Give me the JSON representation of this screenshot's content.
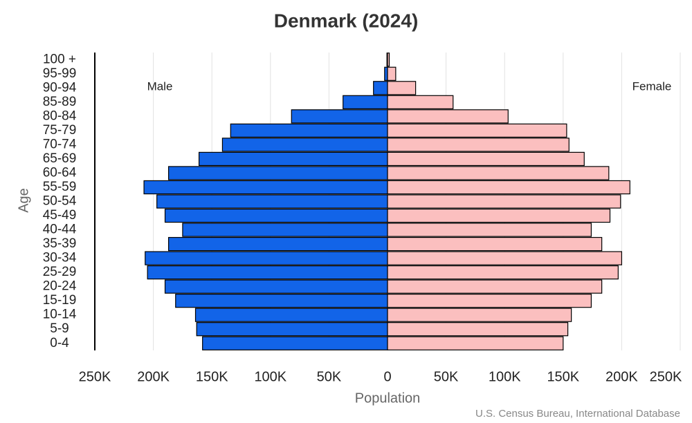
{
  "chart_data": {
    "type": "pyramid",
    "title": "Denmark (2024)",
    "x_label": "Population",
    "y_label": "Age",
    "source": "U.S. Census Bureau, International Database",
    "categories": [
      "0-4",
      "5-9",
      "10-14",
      "15-19",
      "20-24",
      "25-29",
      "30-34",
      "35-39",
      "40-44",
      "45-49",
      "50-54",
      "55-59",
      "60-64",
      "65-69",
      "70-74",
      "75-79",
      "80-84",
      "85-89",
      "90-94",
      "95-99",
      "100 +"
    ],
    "series": [
      {
        "name": "Male",
        "color": "#1264e8",
        "side": "left",
        "values": [
          158000,
          163000,
          164000,
          181000,
          190000,
          205000,
          207000,
          187000,
          175000,
          190000,
          197000,
          208000,
          187000,
          161000,
          141000,
          134000,
          82000,
          38000,
          12000,
          2500,
          500
        ]
      },
      {
        "name": "Female",
        "color": "#fbbfbf",
        "side": "right",
        "values": [
          150000,
          154000,
          157000,
          174000,
          183000,
          197000,
          200000,
          183000,
          174000,
          190000,
          199000,
          207000,
          189000,
          168000,
          155000,
          153000,
          103000,
          56000,
          24000,
          7000,
          1500
        ]
      }
    ],
    "xlim": [
      -250000,
      250000
    ],
    "xticks": [
      {
        "value": -250000,
        "label": "250K"
      },
      {
        "value": -200000,
        "label": "200K"
      },
      {
        "value": -150000,
        "label": "150K"
      },
      {
        "value": -100000,
        "label": "100K"
      },
      {
        "value": -50000,
        "label": "50K"
      },
      0,
      {
        "value": 50000,
        "label": "50K"
      },
      {
        "value": 100000,
        "label": "100K"
      },
      {
        "value": 150000,
        "label": "150K"
      },
      {
        "value": 200000,
        "label": "200K"
      },
      {
        "value": 250000,
        "label": "250K"
      }
    ],
    "grid": true
  }
}
